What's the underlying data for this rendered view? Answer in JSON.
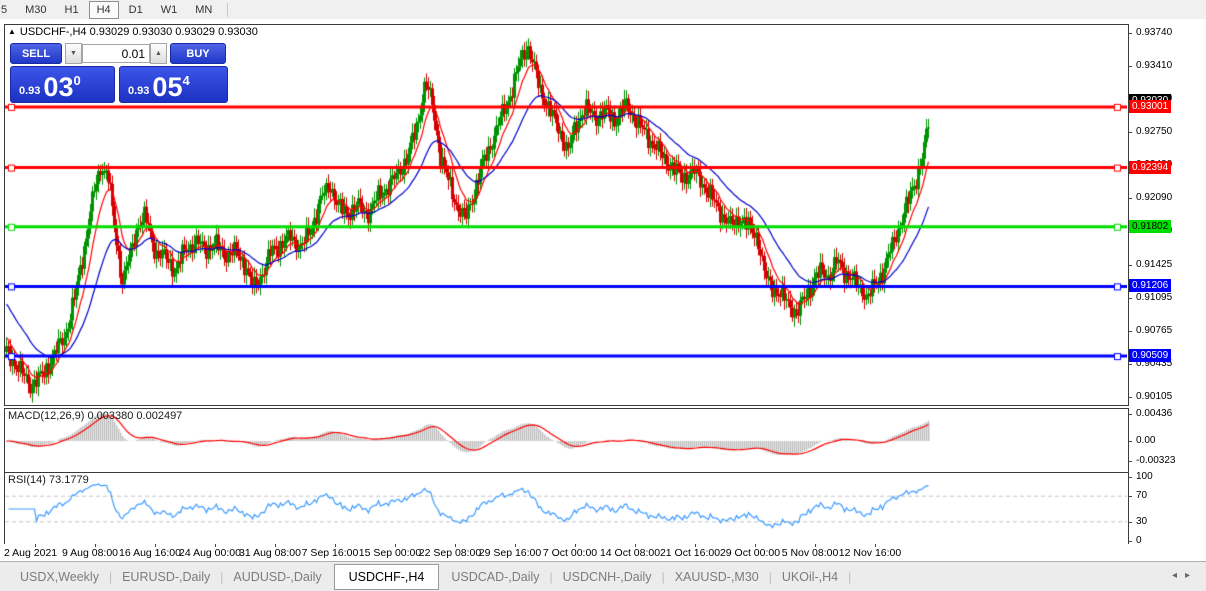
{
  "colors": {
    "bull": "#009100",
    "bear": "#d40000",
    "ma_fast": "#ff0000",
    "ma_slow": "#0000cc",
    "hline_red": "#ff0000",
    "hline_green": "#00dd00",
    "hline_blue": "#0000ff",
    "macd_hist": "#bdbdbd",
    "macd_signal": "#ff0000",
    "rsi_line": "#3d9bff",
    "panel_blue": "#2038c8"
  },
  "toolbar": {
    "timeframes": [
      {
        "label": "5",
        "active": false
      },
      {
        "label": "M30",
        "active": false
      },
      {
        "label": "H1",
        "active": false
      },
      {
        "label": "H4",
        "active": true
      },
      {
        "label": "D1",
        "active": false
      },
      {
        "label": "W1",
        "active": false
      },
      {
        "label": "MN",
        "active": false
      }
    ]
  },
  "chart": {
    "collapse_icon": "▲",
    "title": "USDCHF-,H4",
    "quotes": "0.93029 0.93030 0.93029 0.93030"
  },
  "one_click": {
    "sell_label": "SELL",
    "buy_label": "BUY",
    "volume": "0.01",
    "spin_down": "▼",
    "spin_up": "▲",
    "sell_price": {
      "small": "0.93",
      "big": "03",
      "sup": "0"
    },
    "buy_price": {
      "small": "0.93",
      "big": "05",
      "sup": "4"
    }
  },
  "price_axis": {
    "bid_label": "0.93030",
    "ticks": [
      {
        "v": 0.9374,
        "t": "0.93740"
      },
      {
        "v": 0.9341,
        "t": "0.93410"
      },
      {
        "v": 0.9308,
        "t": "0.93080"
      },
      {
        "v": 0.9275,
        "t": "0.92750"
      },
      {
        "v": 0.9242,
        "t": "0.92420"
      },
      {
        "v": 0.9209,
        "t": "0.92090"
      },
      {
        "v": 0.9176,
        "t": "0.91760"
      },
      {
        "v": 0.91425,
        "t": "0.91425"
      },
      {
        "v": 0.91095,
        "t": "0.91095"
      },
      {
        "v": 0.90765,
        "t": "0.90765"
      },
      {
        "v": 0.90435,
        "t": "0.90435"
      },
      {
        "v": 0.90105,
        "t": "0.90105"
      }
    ]
  },
  "levels": [
    {
      "value": 0.93001,
      "text": "0.93001",
      "color": "#ff0000",
      "text_color": "#fff"
    },
    {
      "value": 0.92394,
      "text": "0.92394",
      "color": "#ff0000",
      "text_color": "#fff"
    },
    {
      "value": 0.91802,
      "text": "0.91802",
      "color": "#00dd00",
      "text_color": "#000"
    },
    {
      "value": 0.91206,
      "text": "0.91206",
      "color": "#0000ff",
      "text_color": "#fff"
    },
    {
      "value": 0.90509,
      "text": "0.90509",
      "color": "#0000ff",
      "text_color": "#fff"
    }
  ],
  "main_chart": {
    "price_top": 0.9382,
    "price_bottom": 0.9004,
    "bid": 0.9303,
    "close_path_anchors": [
      [
        0,
        0.9058
      ],
      [
        12,
        0.904
      ],
      [
        25,
        0.9022
      ],
      [
        38,
        0.9032
      ],
      [
        50,
        0.9055
      ],
      [
        60,
        0.9072
      ],
      [
        70,
        0.9112
      ],
      [
        80,
        0.9165
      ],
      [
        88,
        0.9212
      ],
      [
        96,
        0.9242
      ],
      [
        103,
        0.923
      ],
      [
        110,
        0.9172
      ],
      [
        117,
        0.9126
      ],
      [
        125,
        0.9152
      ],
      [
        133,
        0.9185
      ],
      [
        140,
        0.919
      ],
      [
        150,
        0.9155
      ],
      [
        160,
        0.915
      ],
      [
        170,
        0.9136
      ],
      [
        180,
        0.9158
      ],
      [
        190,
        0.9165
      ],
      [
        200,
        0.9158
      ],
      [
        210,
        0.9163
      ],
      [
        220,
        0.9152
      ],
      [
        230,
        0.9156
      ],
      [
        240,
        0.9142
      ],
      [
        248,
        0.9118
      ],
      [
        258,
        0.9136
      ],
      [
        266,
        0.9156
      ],
      [
        275,
        0.9162
      ],
      [
        285,
        0.917
      ],
      [
        295,
        0.916
      ],
      [
        305,
        0.9175
      ],
      [
        315,
        0.9207
      ],
      [
        325,
        0.9222
      ],
      [
        333,
        0.92
      ],
      [
        342,
        0.9193
      ],
      [
        352,
        0.9202
      ],
      [
        362,
        0.9193
      ],
      [
        372,
        0.9209
      ],
      [
        382,
        0.922
      ],
      [
        392,
        0.9232
      ],
      [
        402,
        0.925
      ],
      [
        412,
        0.9282
      ],
      [
        420,
        0.9326
      ],
      [
        427,
        0.9302
      ],
      [
        435,
        0.9252
      ],
      [
        443,
        0.9226
      ],
      [
        452,
        0.92
      ],
      [
        460,
        0.9188
      ],
      [
        468,
        0.9212
      ],
      [
        477,
        0.9242
      ],
      [
        486,
        0.9264
      ],
      [
        495,
        0.9288
      ],
      [
        505,
        0.9312
      ],
      [
        515,
        0.9346
      ],
      [
        522,
        0.9363
      ],
      [
        528,
        0.9342
      ],
      [
        535,
        0.9316
      ],
      [
        545,
        0.9296
      ],
      [
        555,
        0.9274
      ],
      [
        563,
        0.9256
      ],
      [
        572,
        0.9286
      ],
      [
        580,
        0.9299
      ],
      [
        590,
        0.9289
      ],
      [
        600,
        0.9296
      ],
      [
        610,
        0.9286
      ],
      [
        620,
        0.9303
      ],
      [
        628,
        0.9291
      ],
      [
        638,
        0.9276
      ],
      [
        648,
        0.9263
      ],
      [
        658,
        0.9249
      ],
      [
        668,
        0.9239
      ],
      [
        678,
        0.9229
      ],
      [
        688,
        0.9236
      ],
      [
        698,
        0.9223
      ],
      [
        708,
        0.9206
      ],
      [
        718,
        0.9191
      ],
      [
        726,
        0.9181
      ],
      [
        735,
        0.9189
      ],
      [
        744,
        0.9179
      ],
      [
        752,
        0.9171
      ],
      [
        760,
        0.9129
      ],
      [
        768,
        0.9119
      ],
      [
        776,
        0.9111
      ],
      [
        784,
        0.9103
      ],
      [
        792,
        0.9093
      ],
      [
        800,
        0.9111
      ],
      [
        808,
        0.9126
      ],
      [
        816,
        0.9136
      ],
      [
        824,
        0.9131
      ],
      [
        832,
        0.9146
      ],
      [
        840,
        0.9134
      ],
      [
        848,
        0.9126
      ],
      [
        856,
        0.9119
      ],
      [
        862,
        0.9109
      ],
      [
        870,
        0.9123
      ],
      [
        878,
        0.9136
      ],
      [
        886,
        0.9159
      ],
      [
        894,
        0.9181
      ],
      [
        900,
        0.9196
      ],
      [
        906,
        0.9216
      ],
      [
        912,
        0.9231
      ],
      [
        918,
        0.9253
      ],
      [
        923,
        0.9283
      ],
      [
        928,
        0.9303
      ]
    ]
  },
  "macd": {
    "label": "MACD(12,26,9)",
    "values": "0.003380 0.002497",
    "main_value": 0.00338,
    "signal_value": 0.002497,
    "ticks": [
      {
        "v": 0.00436,
        "t": "0.00436"
      },
      {
        "v": 0,
        "t": "0.00"
      },
      {
        "v": -0.00323,
        "t": "-0.00323"
      }
    ]
  },
  "rsi": {
    "label": "RSI(14)",
    "value": "73.1779",
    "ticks": [
      {
        "v": 100,
        "t": "100"
      },
      {
        "v": 70,
        "t": "70"
      },
      {
        "v": 30,
        "t": "30"
      },
      {
        "v": 0,
        "t": "0"
      }
    ],
    "levels": [
      70,
      30
    ]
  },
  "time_axis": {
    "labels": [
      "2 Aug 2021",
      "9 Aug 08:00",
      "16 Aug 16:00",
      "24 Aug 00:00",
      "31 Aug 08:00",
      "7 Sep 16:00",
      "15 Sep 00:00",
      "22 Sep 08:00",
      "29 Sep 16:00",
      "7 Oct 00:00",
      "14 Oct 08:00",
      "21 Oct 16:00",
      "29 Oct 00:00",
      "5 Nov 08:00",
      "12 Nov 16:00"
    ]
  },
  "tabs": {
    "items": [
      "USDX,Weekly",
      "EURUSD-,Daily",
      "AUDUSD-,Daily",
      "USDCHF-,H4",
      "USDCAD-,Daily",
      "USDCNH-,Daily",
      "XAUUSD-,M30",
      "UKOil-,H4"
    ],
    "active_index": 3,
    "left_arrow": "◂",
    "right_arrow": "▸"
  }
}
